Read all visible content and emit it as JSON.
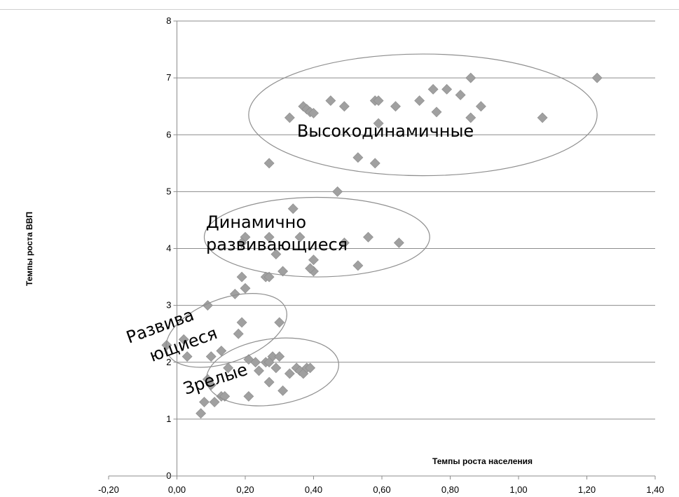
{
  "chart_data": {
    "type": "scatter",
    "xlabel": "Темпы роста населения",
    "ylabel": "Темпы роста ВВП",
    "xlim": [
      -0.2,
      1.4
    ],
    "ylim": [
      0,
      8
    ],
    "x_ticks": [
      "-0,20",
      "0,00",
      "0,20",
      "0,40",
      "0,60",
      "0,80",
      "1,00",
      "1,20",
      "1,40"
    ],
    "y_ticks": [
      "0",
      "1",
      "2",
      "3",
      "4",
      "5",
      "6",
      "7",
      "8"
    ],
    "grid": "horizontal",
    "marker_color": "#a0a0a0",
    "clusters": [
      {
        "label": "Высокодинамичные",
        "center": [
          0.72,
          6.35
        ],
        "radius": [
          0.51,
          1.07
        ]
      },
      {
        "label": "Динамично развивающиеся",
        "label_lines": [
          "Динамично",
          "развивающиеся"
        ],
        "center": [
          0.41,
          4.2
        ],
        "radius": [
          0.33,
          0.7
        ]
      },
      {
        "label": "Развивающиеся",
        "label_lines": [
          "Развива",
          "ющиеся"
        ],
        "center": [
          0.145,
          2.56
        ],
        "radius": [
          0.185,
          0.56
        ],
        "rotation": -20
      },
      {
        "label": "Зрелые",
        "center": [
          0.28,
          1.83
        ],
        "radius": [
          0.195,
          0.58
        ],
        "rotation": -8
      }
    ],
    "points": [
      [
        0.33,
        6.3
      ],
      [
        0.37,
        6.5
      ],
      [
        0.38,
        6.45
      ],
      [
        0.39,
        6.4
      ],
      [
        0.4,
        6.38
      ],
      [
        0.45,
        6.6
      ],
      [
        0.49,
        6.5
      ],
      [
        0.58,
        6.6
      ],
      [
        0.59,
        6.6
      ],
      [
        0.59,
        6.2
      ],
      [
        0.64,
        6.5
      ],
      [
        0.71,
        6.6
      ],
      [
        0.75,
        6.8
      ],
      [
        0.76,
        6.4
      ],
      [
        0.79,
        6.8
      ],
      [
        0.83,
        6.7
      ],
      [
        0.86,
        7.0
      ],
      [
        0.86,
        6.3
      ],
      [
        0.89,
        6.5
      ],
      [
        1.07,
        6.3
      ],
      [
        1.23,
        7.0
      ],
      [
        0.53,
        5.6
      ],
      [
        0.58,
        5.5
      ],
      [
        0.27,
        5.5
      ],
      [
        0.47,
        5.0
      ],
      [
        0.34,
        4.7
      ],
      [
        0.2,
        4.2
      ],
      [
        0.19,
        4.1
      ],
      [
        0.27,
        4.2
      ],
      [
        0.36,
        4.2
      ],
      [
        0.49,
        4.1
      ],
      [
        0.56,
        4.2
      ],
      [
        0.65,
        4.1
      ],
      [
        0.29,
        3.9
      ],
      [
        0.4,
        3.8
      ],
      [
        0.53,
        3.7
      ],
      [
        0.31,
        3.6
      ],
      [
        0.4,
        3.6
      ],
      [
        0.39,
        3.65
      ],
      [
        0.19,
        3.5
      ],
      [
        0.26,
        3.5
      ],
      [
        0.27,
        3.5
      ],
      [
        0.2,
        3.3
      ],
      [
        0.17,
        3.2
      ],
      [
        0.09,
        3.0
      ],
      [
        0.3,
        2.7
      ],
      [
        0.19,
        2.7
      ],
      [
        0.18,
        2.5
      ],
      [
        0.02,
        2.4
      ],
      [
        -0.03,
        2.3
      ],
      [
        0.03,
        2.1
      ],
      [
        0.1,
        2.1
      ],
      [
        0.13,
        2.2
      ],
      [
        0.21,
        2.05
      ],
      [
        0.23,
        2.0
      ],
      [
        0.26,
        2.0
      ],
      [
        0.28,
        2.1
      ],
      [
        0.3,
        2.1
      ],
      [
        0.27,
        2.0
      ],
      [
        0.15,
        1.9
      ],
      [
        0.24,
        1.85
      ],
      [
        0.29,
        1.9
      ],
      [
        0.33,
        1.8
      ],
      [
        0.35,
        1.9
      ],
      [
        0.36,
        1.85
      ],
      [
        0.37,
        1.8
      ],
      [
        0.38,
        1.9
      ],
      [
        0.39,
        1.9
      ],
      [
        0.27,
        1.65
      ],
      [
        0.09,
        1.7
      ],
      [
        0.1,
        1.6
      ],
      [
        0.31,
        1.5
      ],
      [
        0.21,
        1.4
      ],
      [
        0.13,
        1.4
      ],
      [
        0.14,
        1.4
      ],
      [
        0.11,
        1.3
      ],
      [
        0.08,
        1.3
      ],
      [
        0.07,
        1.1
      ]
    ]
  }
}
